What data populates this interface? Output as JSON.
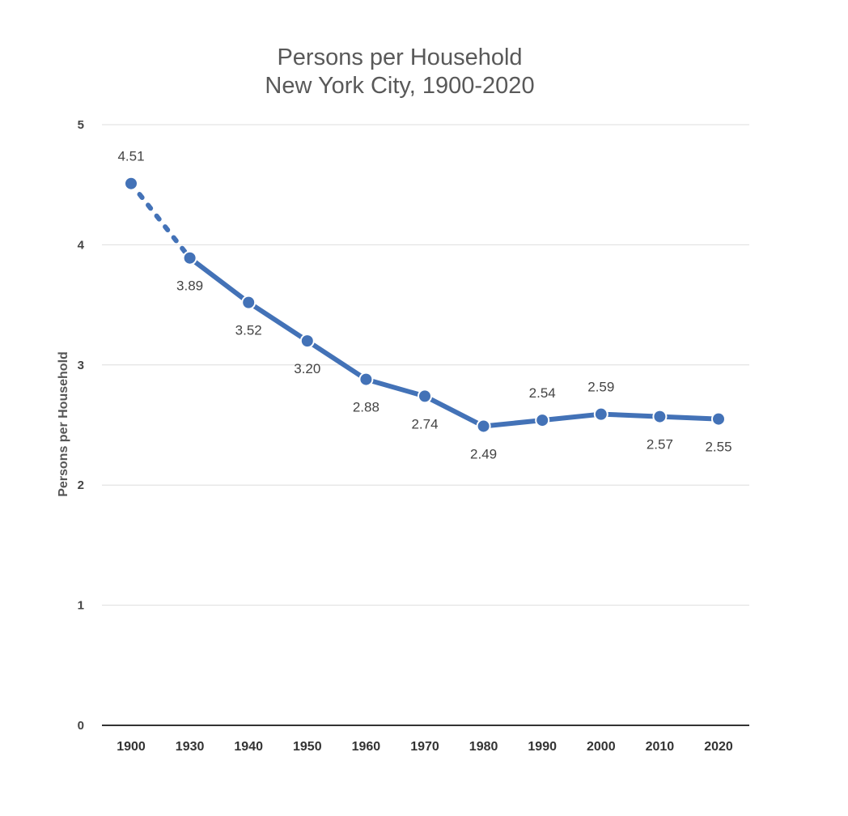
{
  "chart_data": {
    "type": "line",
    "title": "Persons per Household",
    "subtitle": "New York City, 1900-2020",
    "xlabel": "",
    "ylabel": "Persons per Household",
    "ylim": [
      0,
      5
    ],
    "yticks": [
      "0",
      "1",
      "2",
      "3",
      "4",
      "5"
    ],
    "grid": true,
    "legend": "none",
    "categories": [
      "1900",
      "1930",
      "1940",
      "1950",
      "1960",
      "1970",
      "1980",
      "1990",
      "2000",
      "2010",
      "2020"
    ],
    "values": [
      4.51,
      3.89,
      3.52,
      3.2,
      2.88,
      2.74,
      2.49,
      2.54,
      2.59,
      2.57,
      2.55
    ],
    "value_labels": [
      "4.51",
      "3.89",
      "3.52",
      "3.20",
      "2.88",
      "2.74",
      "2.49",
      "2.54",
      "2.59",
      "2.57",
      "2.55"
    ],
    "label_positions": [
      "above",
      "below",
      "below",
      "below",
      "below",
      "below",
      "below",
      "above",
      "above",
      "below",
      "below"
    ],
    "dashed_segment": [
      "1900",
      "1930"
    ],
    "series_color": "#4372b7"
  }
}
